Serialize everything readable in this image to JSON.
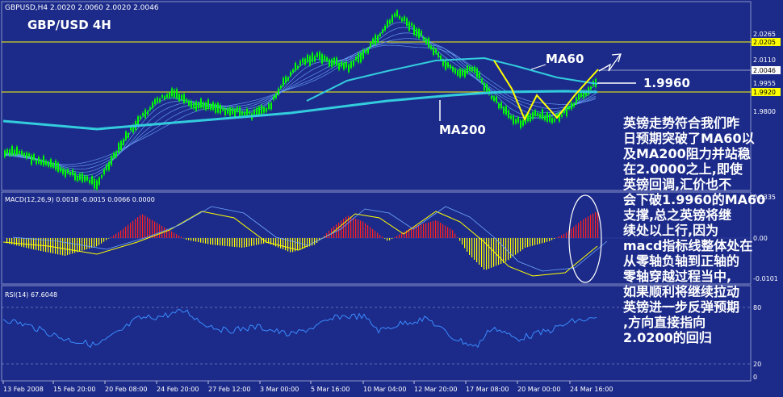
{
  "header": {
    "symbol_line": "GBPUSD,H4  2.0020 2.0060 2.0020 2.0046",
    "title": "GBP/USD 4H"
  },
  "annotations": {
    "ma60": "MA60",
    "ma200": "MA200",
    "level": "1.9960"
  },
  "commentary_lines": [
    "英镑走势符合我们昨",
    "日预期突破了MA60以",
    "及MA200阻力并站稳",
    "在2.0000之上,即使",
    "英镑回调,汇价也不",
    "会下破1.9960的MA60",
    "支撑,总之英镑将继",
    "续处以上行,因为",
    "macd指标线整体处在",
    "从零轴负轴到正轴的",
    "零轴穿越过程当中,",
    "如果顺利将继续拉动",
    "英镑进一步反弹预期",
    ",方向直接指向",
    "2.0200的回归"
  ],
  "price_axis": {
    "ticks": [
      "2.0265",
      "2.0110",
      "1.9955",
      "1.9800"
    ],
    "highlight_labels": [
      "2.0205",
      "2.0046",
      "1.9920"
    ]
  },
  "macd": {
    "label": "MACD(12,26,9) 0.0018 -0.0015 0.0066 0.0000",
    "axis_ticks": [
      "0.0335",
      "0.00",
      "-0.0101"
    ]
  },
  "rsi": {
    "label": "RSI(14) 67.6048",
    "axis_ticks": [
      "80",
      "20",
      "0"
    ]
  },
  "time_axis": {
    "labels": [
      "13 Feb 2008",
      "15 Feb 20:00",
      "20 Feb 08:00",
      "24 Feb 20:00",
      "27 Feb 12:00",
      "3 Mar 00:00",
      "5 Mar 16:00",
      "10 Mar 04:00",
      "12 Mar 20:00",
      "17 Mar 08:00",
      "20 Mar 00:00",
      "24 Mar 16:00"
    ]
  },
  "colors": {
    "background": "#1c2b8a",
    "candles": "#00ff00",
    "ma200": "#33ccdd",
    "ma_lines": "#6fa8ff",
    "yellow": "#ffff00",
    "macd_pos": "#ff2020",
    "macd_neg": "#ffff00",
    "rsi": "#3b8bff"
  },
  "chart_data": {
    "type": "line",
    "series": [
      {
        "values": [
          1.977,
          1.978,
          1.975,
          1.973,
          1.97,
          1.968,
          1.966,
          1.975,
          1.985,
          1.992,
          1.998,
          2.0,
          1.995,
          1.996,
          1.994,
          1.993,
          1.992,
          1.995,
          2.005,
          2.012,
          2.014,
          2.012,
          2.01,
          2.015,
          2.022,
          2.03,
          2.026,
          2.02,
          2.012,
          2.007,
          2.01,
          2.0,
          1.993,
          1.989,
          1.992,
          1.99,
          1.993,
          2.0,
          2.005
        ]
      }
    ],
    "ylim": [
      1.965,
      2.03
    ]
  }
}
